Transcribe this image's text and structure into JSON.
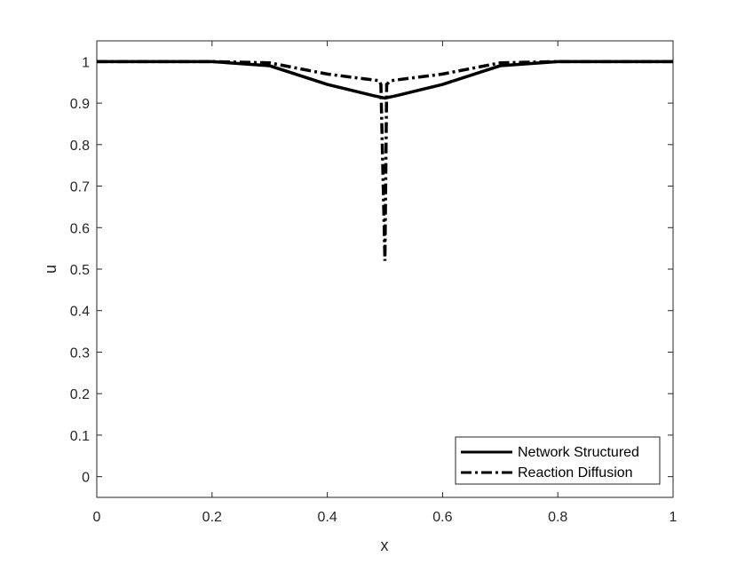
{
  "chart_data": {
    "type": "line",
    "title": "",
    "xlabel": "x",
    "ylabel": "u",
    "xlim": [
      0,
      1
    ],
    "ylim": [
      -0.05,
      1.05
    ],
    "xticks": [
      0,
      0.2,
      0.4,
      0.6,
      0.8,
      1
    ],
    "xtick_labels": [
      "0",
      "0.2",
      "0.4",
      "0.6",
      "0.8",
      "1"
    ],
    "yticks": [
      0,
      0.1,
      0.2,
      0.3,
      0.4,
      0.5,
      0.6,
      0.7,
      0.8,
      0.9,
      1
    ],
    "ytick_labels": [
      "0",
      "0.1",
      "0.2",
      "0.3",
      "0.4",
      "0.5",
      "0.6",
      "0.7",
      "0.8",
      "0.9",
      "1"
    ],
    "grid": false,
    "legend_position": "bottom-right",
    "line_color": "#000000",
    "axis_color": "#262626",
    "series": [
      {
        "name": "Network Structured",
        "style": "solid",
        "x": [
          0,
          0.1,
          0.2,
          0.3,
          0.4,
          0.48,
          0.49,
          0.5,
          0.51,
          0.52,
          0.6,
          0.7,
          0.8,
          0.9,
          1
        ],
        "y": [
          1,
          1,
          1,
          0.99,
          0.945,
          0.918,
          0.915,
          0.912,
          0.915,
          0.918,
          0.945,
          0.99,
          1,
          1,
          1
        ]
      },
      {
        "name": "Reaction Diffusion",
        "style": "dashdot",
        "x": [
          0,
          0.1,
          0.2,
          0.3,
          0.4,
          0.49,
          0.493,
          0.5,
          0.503,
          0.51,
          0.6,
          0.7,
          0.8,
          0.9,
          1
        ],
        "y": [
          1,
          1,
          1,
          0.997,
          0.97,
          0.954,
          0.945,
          0.52,
          0.945,
          0.954,
          0.97,
          0.997,
          1,
          1,
          1
        ]
      }
    ]
  }
}
